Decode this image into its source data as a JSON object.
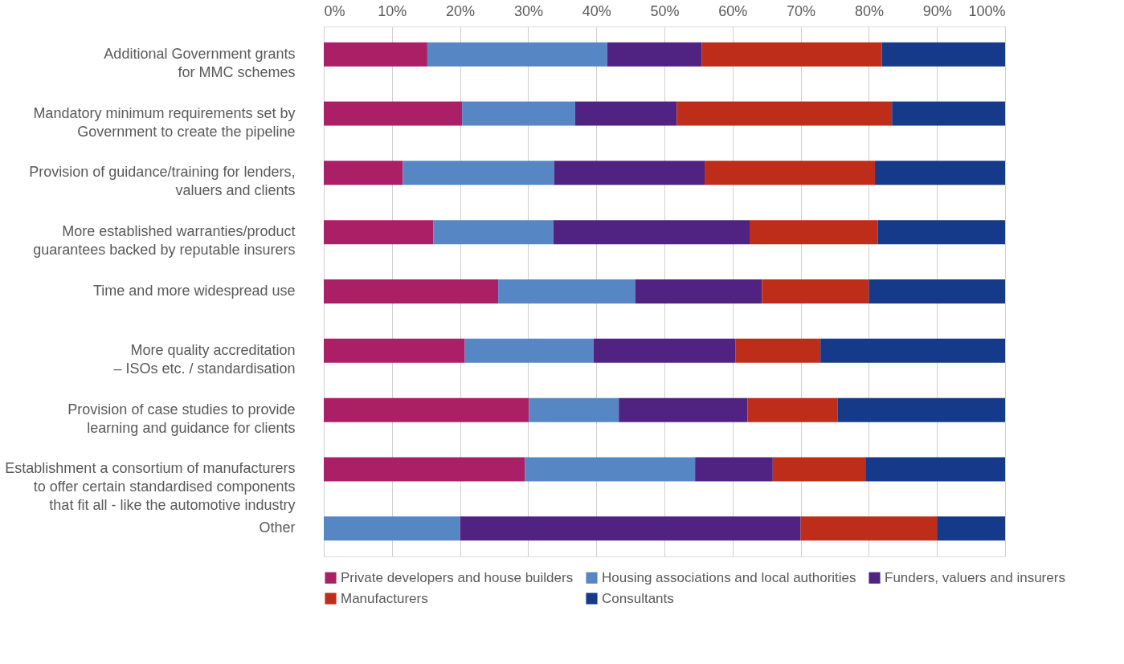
{
  "chart_data": {
    "type": "bar",
    "orientation": "horizontal",
    "stacked": true,
    "categories": [
      "Additional Government grants\nfor MMC schemes",
      "Mandatory minimum requirements set by\nGovernment to create the pipeline",
      "Provision of guidance/training for lenders,\nvaluers and clients",
      "More established warranties/product\nguarantees backed by reputable insurers",
      "Time and more widespread use",
      "More quality accreditation\n– ISOs etc. / standardisation",
      "Provision of case studies to provide\nlearning and guidance for clients",
      "Establishment a consortium of manufacturers\nto offer certain standardised components\nthat fit all - like the automotive industry",
      "Other"
    ],
    "series": [
      {
        "name": "Private developers and house builders",
        "color": "#ab1f66",
        "values": [
          15.2,
          20.3,
          11.6,
          16.1,
          25.6,
          20.7,
          30.1,
          29.5,
          0
        ]
      },
      {
        "name": "Housing associations and local authorities",
        "color": "#5687c4",
        "values": [
          26.4,
          16.6,
          22.2,
          17.6,
          20.1,
          18.9,
          13.2,
          25.0,
          20
        ]
      },
      {
        "name": "Funders, valuers and insurers",
        "color": "#502382",
        "values": [
          13.9,
          14.9,
          22.1,
          28.8,
          18.6,
          20.8,
          18.9,
          11.4,
          50
        ]
      },
      {
        "name": "Manufacturers",
        "color": "#be2d19",
        "values": [
          26.4,
          31.6,
          25.0,
          18.8,
          15.7,
          12.5,
          13.2,
          13.7,
          20
        ]
      },
      {
        "name": "Consultants",
        "color": "#153a89",
        "values": [
          18.1,
          16.6,
          19.1,
          18.7,
          20.0,
          27.1,
          24.6,
          20.4,
          10
        ]
      }
    ],
    "xlim": [
      0,
      100
    ],
    "xticks": [
      {
        "value": 0,
        "label": "0%"
      },
      {
        "value": 10,
        "label": "10%"
      },
      {
        "value": 20,
        "label": "20%"
      },
      {
        "value": 30,
        "label": "30%"
      },
      {
        "value": 40,
        "label": "40%"
      },
      {
        "value": 50,
        "label": "50%"
      },
      {
        "value": 60,
        "label": "60%"
      },
      {
        "value": 70,
        "label": "70%"
      },
      {
        "value": 80,
        "label": "80%"
      },
      {
        "value": 90,
        "label": "90%"
      },
      {
        "value": 100,
        "label": "100%"
      }
    ],
    "grid": "x",
    "legend": "bottom"
  }
}
